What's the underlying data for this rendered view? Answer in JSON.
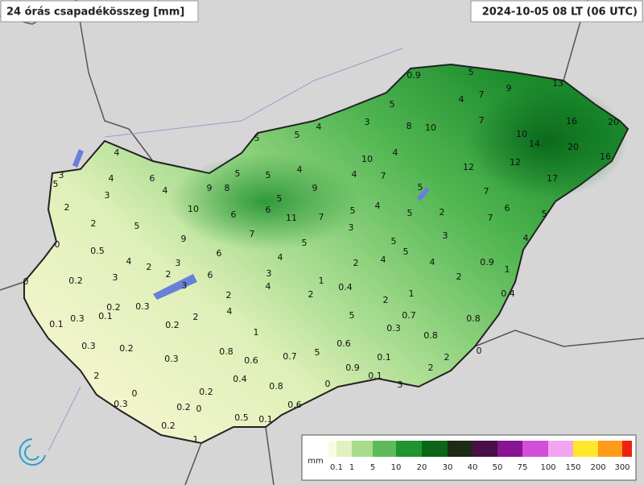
{
  "header": {
    "title": "24 órás csapadékösszeg [mm]",
    "time": "2024-10-05 08 LT (06 UTC)"
  },
  "legend": {
    "unit": "mm",
    "labels": [
      0.1,
      1,
      5,
      10,
      20,
      30,
      40,
      50,
      75,
      100,
      150,
      200,
      300
    ],
    "colors": [
      "#fbfbe0",
      "#dff2c0",
      "#a6dc8c",
      "#5dbb5a",
      "#1f9430",
      "#0b6618",
      "#1d2a14",
      "#4a0f48",
      "#8a1590",
      "#d24ed8",
      "#f3a6ef",
      "#ffe82a",
      "#ff9a1a",
      "#f02010"
    ]
  },
  "stations": [
    3,
    5,
    4,
    4,
    6,
    4,
    3,
    2,
    2,
    5,
    0,
    0.5,
    4,
    2,
    3,
    3,
    0.2,
    0,
    2,
    3,
    0.3,
    0.2,
    0.1,
    0.3,
    0.1,
    0.2,
    2,
    0.3,
    0.2,
    0.3,
    2,
    0,
    0.3,
    0.2,
    0.2,
    0,
    0.2,
    1,
    0.5,
    0.1,
    0.6,
    0.8,
    0.4,
    0.6,
    0.8,
    1,
    4,
    2,
    6,
    6,
    9,
    10,
    9,
    8,
    5,
    6,
    7,
    5,
    5,
    6,
    11,
    7,
    9,
    4,
    5,
    5,
    4,
    3,
    5,
    8,
    10,
    0.9,
    5,
    4,
    7,
    9,
    13,
    7,
    10,
    14,
    16,
    20,
    20,
    16,
    12,
    12,
    17,
    7,
    6,
    7,
    5,
    4,
    2,
    3,
    0.9,
    1,
    0.4,
    2,
    5,
    5,
    4,
    4,
    10,
    7,
    4,
    5,
    3,
    5,
    4,
    3,
    4,
    2,
    4,
    5,
    5,
    4,
    1,
    2,
    0.4,
    2,
    1,
    5,
    0.7,
    0.3,
    0.8,
    0.8,
    0,
    0.6,
    5,
    0.7,
    0.1,
    2,
    2,
    0.9,
    0.1,
    0,
    3
  ]
}
